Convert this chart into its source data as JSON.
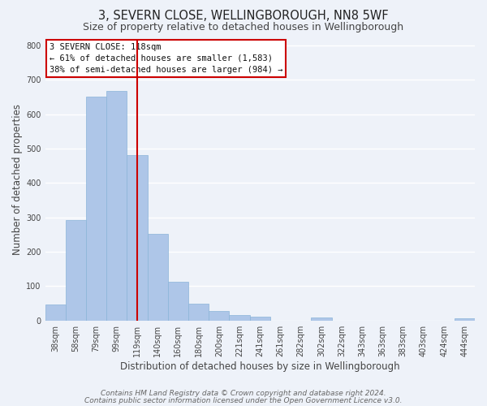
{
  "title": "3, SEVERN CLOSE, WELLINGBOROUGH, NN8 5WF",
  "subtitle": "Size of property relative to detached houses in Wellingborough",
  "xlabel": "Distribution of detached houses by size in Wellingborough",
  "ylabel": "Number of detached properties",
  "bar_labels": [
    "38sqm",
    "58sqm",
    "79sqm",
    "99sqm",
    "119sqm",
    "140sqm",
    "160sqm",
    "180sqm",
    "200sqm",
    "221sqm",
    "241sqm",
    "261sqm",
    "282sqm",
    "302sqm",
    "322sqm",
    "343sqm",
    "363sqm",
    "383sqm",
    "403sqm",
    "424sqm",
    "444sqm"
  ],
  "bar_values": [
    47,
    293,
    651,
    667,
    480,
    253,
    113,
    48,
    28,
    15,
    12,
    0,
    0,
    8,
    0,
    0,
    0,
    0,
    0,
    0,
    7
  ],
  "bar_color": "#aec6e8",
  "bar_edge_color": "#8ab4d8",
  "vline_x_index": 4,
  "vline_color": "#cc0000",
  "ylim": [
    0,
    820
  ],
  "yticks": [
    0,
    100,
    200,
    300,
    400,
    500,
    600,
    700,
    800
  ],
  "annotation_title": "3 SEVERN CLOSE: 118sqm",
  "annotation_line1": "← 61% of detached houses are smaller (1,583)",
  "annotation_line2": "38% of semi-detached houses are larger (984) →",
  "annotation_box_color": "#ffffff",
  "annotation_box_edge": "#cc0000",
  "footer_line1": "Contains HM Land Registry data © Crown copyright and database right 2024.",
  "footer_line2": "Contains public sector information licensed under the Open Government Licence v3.0.",
  "bg_color": "#eef2f9",
  "plot_bg_color": "#eef2f9",
  "grid_color": "#ffffff",
  "title_fontsize": 10.5,
  "subtitle_fontsize": 9,
  "axis_label_fontsize": 8.5,
  "tick_fontsize": 7,
  "annotation_fontsize": 7.5,
  "footer_fontsize": 6.5
}
